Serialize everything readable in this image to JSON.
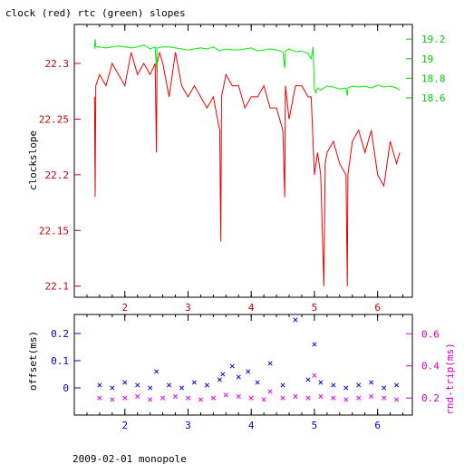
{
  "chart_data": [
    {
      "type": "line",
      "title": "clock (red) rtc (green) slopes",
      "xlabel": "",
      "ylabel": "clockslope",
      "xlim": [
        1.2,
        6.55
      ],
      "ylim_left": [
        22.09,
        22.335
      ],
      "ylim_right": [
        16.56,
        19.35
      ],
      "x_ticks": [
        "2",
        "3",
        "4",
        "5",
        "6"
      ],
      "y_ticks_left": [
        "22.3",
        "22.25",
        "22.2",
        "22.15",
        "22.1"
      ],
      "y_ticks_right": [
        "19.2",
        "19",
        "18.8",
        "18.6"
      ],
      "colors": {
        "clock": "#ee0000",
        "rtc": "#00ee00",
        "left_axis": "#cc0000",
        "right_axis": "#00cc00"
      },
      "series": [
        {
          "key": "clock",
          "axis": "left",
          "x": [
            1.52,
            1.53,
            1.54,
            1.6,
            1.7,
            1.8,
            1.9,
            2.0,
            2.1,
            2.2,
            2.3,
            2.4,
            2.48,
            2.5,
            2.51,
            2.55,
            2.6,
            2.7,
            2.8,
            2.9,
            3.0,
            3.1,
            3.2,
            3.3,
            3.4,
            3.5,
            3.52,
            3.53,
            3.6,
            3.7,
            3.8,
            3.9,
            4.0,
            4.1,
            4.2,
            4.3,
            4.4,
            4.5,
            4.53,
            4.54,
            4.6,
            4.7,
            4.8,
            4.9,
            4.95,
            5.0,
            5.05,
            5.1,
            5.15,
            5.17,
            5.2,
            5.3,
            5.4,
            5.5,
            5.52,
            5.53,
            5.6,
            5.7,
            5.8,
            5.9,
            6.0,
            6.1,
            6.2,
            6.3,
            6.35
          ],
          "values": [
            22.27,
            22.18,
            22.28,
            22.29,
            22.28,
            22.3,
            22.29,
            22.28,
            22.31,
            22.29,
            22.3,
            22.29,
            22.3,
            22.22,
            22.3,
            22.31,
            22.3,
            22.27,
            22.31,
            22.28,
            22.27,
            22.28,
            22.27,
            22.26,
            22.27,
            22.24,
            22.14,
            22.27,
            22.29,
            22.28,
            22.28,
            22.26,
            22.27,
            22.27,
            22.28,
            22.26,
            22.26,
            22.24,
            22.18,
            22.28,
            22.25,
            22.28,
            22.28,
            22.27,
            22.27,
            22.2,
            22.22,
            22.2,
            22.1,
            22.21,
            22.22,
            22.23,
            22.21,
            22.2,
            22.1,
            22.2,
            22.23,
            22.24,
            22.22,
            22.24,
            22.2,
            22.19,
            22.23,
            22.21,
            22.22
          ]
        },
        {
          "key": "rtc",
          "axis": "right",
          "x": [
            1.52,
            1.53,
            1.54,
            1.6,
            1.7,
            1.8,
            1.9,
            2.0,
            2.1,
            2.2,
            2.3,
            2.4,
            2.48,
            2.5,
            2.51,
            2.6,
            2.7,
            2.8,
            2.9,
            3.0,
            3.1,
            3.2,
            3.3,
            3.4,
            3.5,
            3.6,
            3.7,
            3.8,
            3.9,
            4.0,
            4.1,
            4.2,
            4.3,
            4.4,
            4.5,
            4.53,
            4.54,
            4.6,
            4.7,
            4.8,
            4.9,
            4.95,
            4.98,
            5.0,
            5.02,
            5.05,
            5.1,
            5.2,
            5.3,
            5.4,
            5.5,
            5.52,
            5.53,
            5.6,
            5.7,
            5.8,
            5.9,
            6.0,
            6.1,
            6.2,
            6.3,
            6.35
          ],
          "values": [
            19.1,
            19.2,
            19.12,
            19.12,
            19.11,
            19.12,
            19.13,
            19.12,
            19.11,
            19.12,
            19.14,
            19.1,
            19.12,
            18.9,
            19.11,
            19.12,
            19.12,
            19.11,
            19.1,
            19.09,
            19.1,
            19.11,
            19.1,
            19.12,
            19.08,
            19.1,
            19.09,
            19.09,
            19.1,
            19.11,
            19.08,
            19.09,
            19.1,
            19.09,
            19.07,
            18.9,
            19.08,
            19.1,
            19.07,
            19.08,
            19.05,
            19.0,
            19.12,
            18.7,
            18.65,
            18.7,
            18.68,
            18.72,
            18.71,
            18.69,
            18.7,
            18.62,
            18.7,
            18.72,
            18.71,
            18.72,
            18.7,
            18.73,
            18.71,
            18.72,
            18.7,
            18.68
          ]
        }
      ]
    },
    {
      "type": "scatter",
      "xlabel": "",
      "ylabel_left": "offset(ms)",
      "ylabel_right": "rnd-trip(ms)",
      "xlim": [
        1.2,
        6.55
      ],
      "ylim_left": [
        -0.1,
        0.27
      ],
      "ylim_right": [
        0.094,
        0.72
      ],
      "x_ticks": [
        "2",
        "3",
        "4",
        "5",
        "6"
      ],
      "y_ticks_left": [
        "0.2",
        "0.1",
        "0"
      ],
      "y_ticks_right": [
        "0.6",
        "0.4",
        "0.2"
      ],
      "colors": {
        "offset": "#0000ee",
        "rndtrip": "#ee00ee",
        "left_axis": "#0000cc",
        "right_axis": "#cc00cc"
      },
      "series": [
        {
          "key": "offset",
          "axis": "left",
          "x": [
            1.6,
            1.8,
            2.0,
            2.2,
            2.4,
            2.5,
            2.7,
            2.9,
            3.1,
            3.3,
            3.5,
            3.55,
            3.7,
            3.8,
            3.95,
            4.1,
            4.3,
            4.5,
            4.7,
            4.9,
            5.0,
            5.1,
            5.3,
            5.5,
            5.7,
            5.9,
            6.1,
            6.3
          ],
          "values": [
            0.01,
            0.0,
            0.02,
            0.01,
            0.0,
            0.06,
            0.01,
            0.0,
            0.02,
            0.01,
            0.03,
            0.05,
            0.08,
            0.04,
            0.06,
            0.02,
            0.09,
            0.01,
            0.25,
            0.03,
            0.16,
            0.02,
            0.01,
            0.0,
            0.01,
            0.02,
            0.0,
            0.01
          ]
        },
        {
          "key": "rndtrip",
          "axis": "right",
          "x": [
            1.6,
            1.8,
            2.0,
            2.2,
            2.4,
            2.6,
            2.8,
            3.0,
            3.2,
            3.4,
            3.6,
            3.8,
            4.0,
            4.2,
            4.3,
            4.5,
            4.7,
            4.9,
            5.0,
            5.1,
            5.3,
            5.5,
            5.7,
            5.9,
            6.1,
            6.3
          ],
          "values": [
            0.2,
            0.19,
            0.2,
            0.21,
            0.19,
            0.2,
            0.21,
            0.2,
            0.19,
            0.2,
            0.22,
            0.21,
            0.2,
            0.19,
            0.24,
            0.2,
            0.21,
            0.2,
            0.34,
            0.21,
            0.2,
            0.19,
            0.2,
            0.21,
            0.2,
            0.19
          ]
        }
      ]
    }
  ],
  "footer": {
    "caption": "2009-02-01  monopole"
  }
}
